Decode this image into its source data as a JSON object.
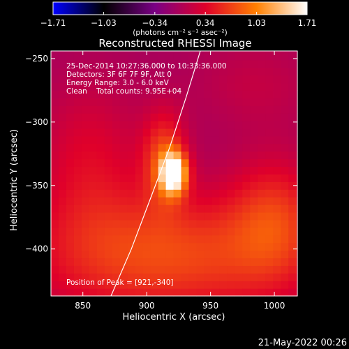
{
  "chart_data": {
    "type": "heatmap",
    "title": "Reconstructed RHESSI Image",
    "xlabel": "Heliocentric X (arcsec)",
    "ylabel": "Heliocentric Y (arcsec)",
    "xlim": [
      825,
      1018
    ],
    "ylim": [
      -437,
      -244
    ],
    "x_ticks": [
      850,
      900,
      950,
      1000
    ],
    "x_tick_labels": [
      "850",
      "900",
      "950",
      "1000"
    ],
    "y_ticks": [
      -250,
      -300,
      -350,
      -400
    ],
    "y_tick_labels": [
      "−250",
      "−300",
      "−350",
      "−400"
    ],
    "colorbar": {
      "range": [
        -1.71,
        1.71
      ],
      "tick_values": [
        -1.71,
        -1.03,
        -0.34,
        0.34,
        1.03,
        1.71
      ],
      "tick_labels": [
        "−1.71",
        "−1.03",
        "−0.34",
        "0.34",
        "1.03",
        "1.71"
      ],
      "unit_label": "(photons cm⁻² s⁻¹ asec⁻²)",
      "colormap": [
        "#0000ff",
        "#000000",
        "#7a0085",
        "#e0002a",
        "#ff8000",
        "#ffffff"
      ]
    },
    "annotations": [
      "25-Dec-2014 10:27:36.000 to 10:33:36.000",
      "Detectors: 3F 6F 7F 9F, Att 0",
      "Energy Range: 3.0 - 6.0 keV",
      "Clean    Total counts: 9.95E+04"
    ],
    "peak_label": "Position of Peak = [921,-340]",
    "peak": {
      "x": 921,
      "y": -340,
      "value": 1.71
    },
    "limb": [
      [
        872,
        -437
      ],
      [
        888,
        -400
      ],
      [
        903,
        -360
      ],
      [
        918,
        -320
      ],
      [
        931,
        -280
      ],
      [
        942,
        -244
      ]
    ],
    "emission_sources": [
      {
        "x": 921,
        "y": -340,
        "amp": 1.71,
        "sx": 7,
        "sy": 11
      },
      {
        "x": 914,
        "y": -328,
        "amp": 0.7,
        "sx": 12,
        "sy": 26
      },
      {
        "x": 915,
        "y": -405,
        "amp": 0.78,
        "sx": 75,
        "sy": 35
      },
      {
        "x": 1000,
        "y": -375,
        "amp": 0.55,
        "sx": 25,
        "sy": 35
      },
      {
        "x": 855,
        "y": -330,
        "amp": 0.38,
        "sx": 30,
        "sy": 45
      },
      {
        "x": 985,
        "y": -270,
        "amp": 0.2,
        "sx": 35,
        "sy": 25
      }
    ],
    "background_level": -0.05
  },
  "timestamp": "21-May-2022 00:26"
}
